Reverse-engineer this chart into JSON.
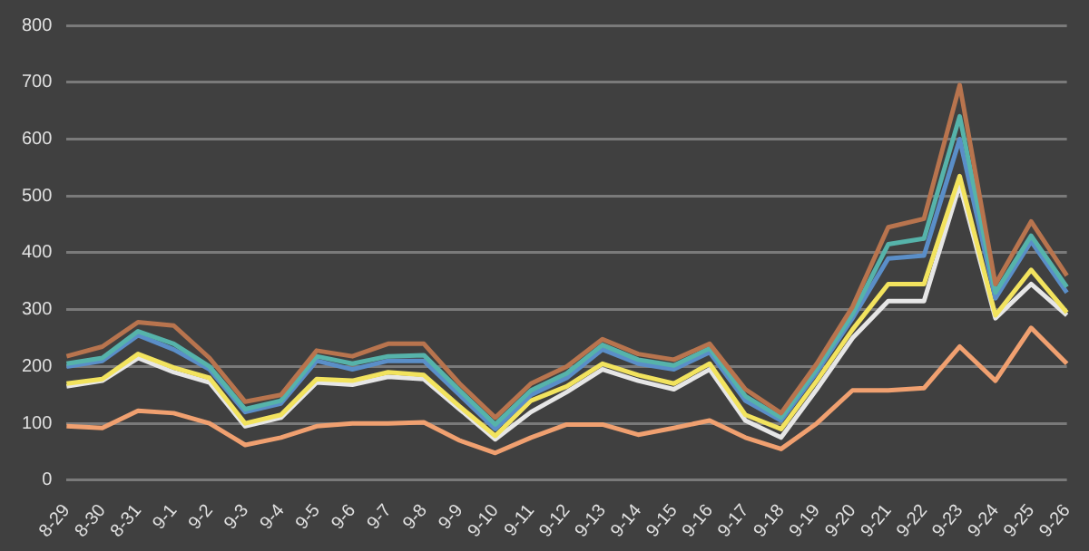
{
  "chart_data": {
    "type": "line",
    "categories": [
      "8-29",
      "8-30",
      "8-31",
      "9-1",
      "9-2",
      "9-3",
      "9-4",
      "9-5",
      "9-6",
      "9-7",
      "9-8",
      "9-9",
      "9-10",
      "9-11",
      "9-12",
      "9-13",
      "9-14",
      "9-15",
      "9-16",
      "9-17",
      "9-18",
      "9-19",
      "9-20",
      "9-21",
      "9-22",
      "9-23",
      "9-24",
      "9-25",
      "9-26"
    ],
    "series": [
      {
        "color": "#b8744e",
        "values": [
          218,
          235,
          278,
          272,
          215,
          138,
          150,
          228,
          218,
          240,
          240,
          170,
          110,
          170,
          200,
          248,
          222,
          212,
          240,
          160,
          118,
          205,
          305,
          445,
          460,
          695,
          345,
          455,
          360
        ]
      },
      {
        "color": "#56b3aa",
        "values": [
          205,
          215,
          262,
          240,
          200,
          125,
          140,
          218,
          205,
          218,
          220,
          158,
          98,
          158,
          188,
          238,
          212,
          202,
          232,
          148,
          110,
          196,
          292,
          415,
          425,
          640,
          330,
          430,
          340
        ]
      },
      {
        "color": "#5a8ec8",
        "values": [
          200,
          210,
          255,
          230,
          195,
          120,
          135,
          210,
          195,
          210,
          210,
          150,
          90,
          150,
          180,
          230,
          205,
          195,
          225,
          140,
          105,
          190,
          285,
          390,
          395,
          600,
          320,
          420,
          330
        ]
      },
      {
        "color": "#f2e35e",
        "values": [
          170,
          178,
          222,
          198,
          180,
          100,
          115,
          178,
          175,
          190,
          185,
          130,
          78,
          140,
          165,
          205,
          185,
          170,
          205,
          115,
          90,
          175,
          265,
          345,
          345,
          535,
          290,
          370,
          295
        ]
      },
      {
        "color": "#e6e6e6",
        "values": [
          165,
          175,
          215,
          190,
          172,
          95,
          110,
          172,
          168,
          182,
          178,
          125,
          72,
          120,
          155,
          195,
          175,
          160,
          195,
          105,
          75,
          160,
          250,
          315,
          315,
          520,
          285,
          345,
          290
        ]
      },
      {
        "color": "#f0a070",
        "values": [
          95,
          92,
          122,
          118,
          100,
          62,
          75,
          95,
          100,
          100,
          102,
          70,
          48,
          75,
          98,
          98,
          80,
          92,
          105,
          75,
          55,
          100,
          158,
          158,
          162,
          235,
          175,
          268,
          205
        ]
      }
    ],
    "ylim": [
      0,
      800
    ],
    "yticks": [
      0,
      100,
      200,
      300,
      400,
      500,
      600,
      700,
      800
    ],
    "grid": "y",
    "legend": false,
    "marker": "none",
    "line_style": "solid"
  }
}
